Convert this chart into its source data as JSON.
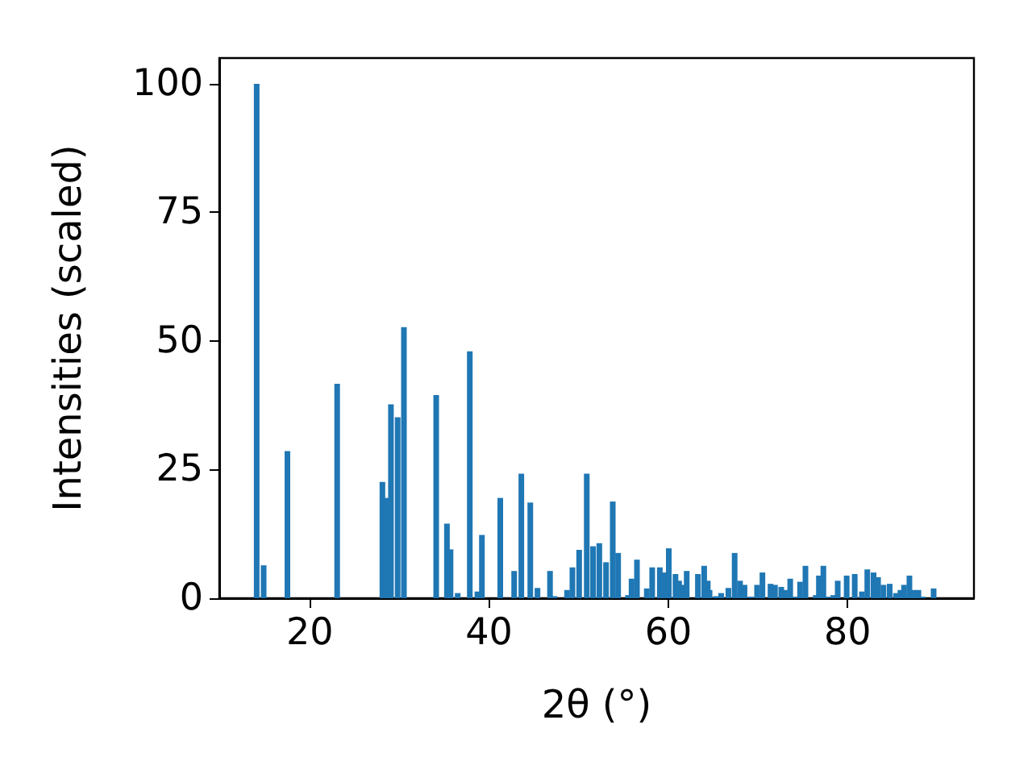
{
  "chart_data": {
    "type": "bar",
    "xlabel": "2θ (°)",
    "ylabel": "Intensities (scaled)",
    "x": [
      14.07,
      14.85,
      17.5,
      23.05,
      28.1,
      28.5,
      29.05,
      29.8,
      30.5,
      34.1,
      35.3,
      35.7,
      36.5,
      37.85,
      38.7,
      39.2,
      41.25,
      42.8,
      43.6,
      44.6,
      45.4,
      46.8,
      47.3,
      48.7,
      49.3,
      50.05,
      50.9,
      51.6,
      52.3,
      53.05,
      53.8,
      54.4,
      55.5,
      55.9,
      56.5,
      57.6,
      58.2,
      59.05,
      59.6,
      60.05,
      60.8,
      61.2,
      61.65,
      62.05,
      63.3,
      64.0,
      64.4,
      64.6,
      65.3,
      65.9,
      66.7,
      67.4,
      68.0,
      68.5,
      69.2,
      69.9,
      70.5,
      71.4,
      71.9,
      72.6,
      73.0,
      73.6,
      74.2,
      74.7,
      75.3,
      76.45,
      76.8,
      77.3,
      77.7,
      78.4,
      78.9,
      79.9,
      80.8,
      81.6,
      82.2,
      82.9,
      83.4,
      84.0,
      84.7,
      85.4,
      85.9,
      86.3,
      86.9,
      87.4,
      87.9,
      88.4,
      89.6
    ],
    "values": [
      100,
      6.4,
      28.6,
      41.7,
      22.6,
      19.5,
      37.7,
      35.2,
      52.7,
      39.5,
      14.5,
      9.5,
      1,
      48,
      1.3,
      12.3,
      19.5,
      5.3,
      24.2,
      18.6,
      2,
      5.3,
      0.4,
      1.6,
      6,
      9.4,
      24.2,
      10.1,
      10.7,
      7,
      18.8,
      8.8,
      0.6,
      3.8,
      7.5,
      1.9,
      6,
      6,
      5,
      9.7,
      4.7,
      3.4,
      2.6,
      5.3,
      4.7,
      6.3,
      3.4,
      1.6,
      0.4,
      1,
      2,
      8.8,
      3.4,
      2.6,
      0.3,
      2.6,
      5,
      2.8,
      2.6,
      2.2,
      1.6,
      3.8,
      0.3,
      3.2,
      6.3,
      0.6,
      4.4,
      6.3,
      0.3,
      0.6,
      3.4,
      4.4,
      4.7,
      1.3,
      5.6,
      5,
      4.1,
      2.6,
      2.8,
      1,
      1.6,
      2.6,
      4.4,
      1.6,
      1.6,
      0.3,
      1.9
    ],
    "color": "#1f77b4",
    "xlim": [
      9.9,
      94.1
    ],
    "xticks": [
      20,
      40,
      60,
      80
    ],
    "ylim": [
      0,
      105
    ],
    "yticks": [
      0,
      25,
      50,
      75,
      100
    ],
    "grid": false
  }
}
